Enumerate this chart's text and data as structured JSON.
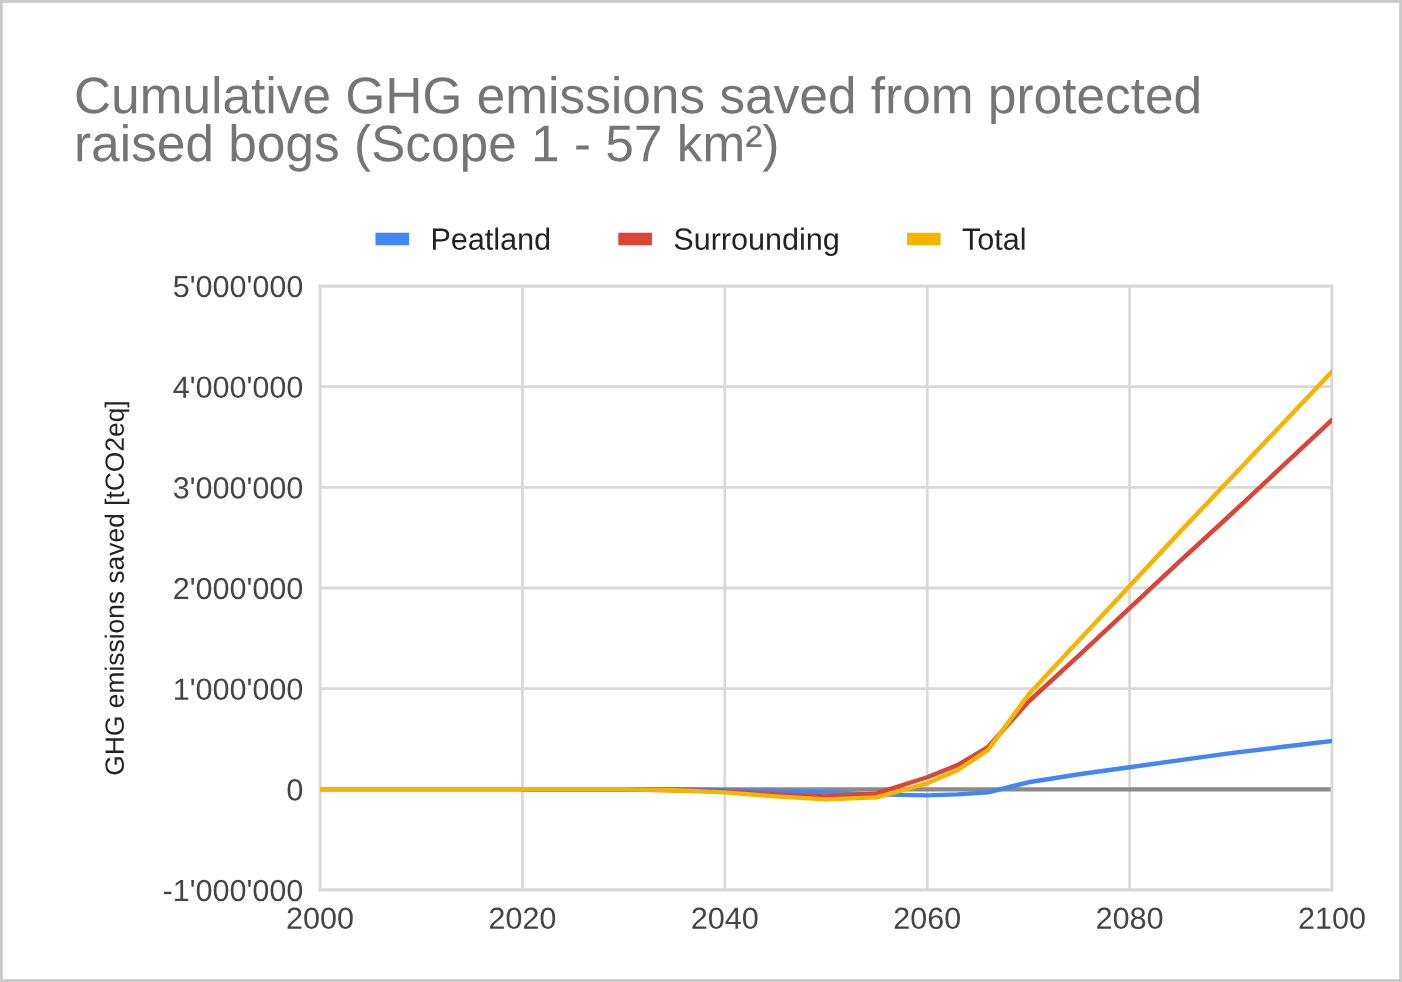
{
  "chart_data": {
    "type": "line",
    "title": "Cumulative GHG emissions saved from protected\nraised bogs (Scope 1 - 57 km²)",
    "ylabel": "GHG emissions saved [tCO2eq]",
    "x": [
      2000,
      2010,
      2020,
      2030,
      2035,
      2040,
      2045,
      2050,
      2055,
      2060,
      2063,
      2066,
      2070,
      2075,
      2080,
      2085,
      2090,
      2095,
      2100
    ],
    "series": [
      {
        "name": "Peatland",
        "color": "#4285f4",
        "values": [
          null,
          null,
          0,
          0,
          0,
          -10000,
          -20000,
          -30000,
          -50000,
          -60000,
          -50000,
          -30000,
          70000,
          150000,
          220000,
          290000,
          360000,
          420000,
          480000
        ]
      },
      {
        "name": "Surrounding",
        "color": "#db4437",
        "values": [
          null,
          null,
          0,
          0,
          -10000,
          -20000,
          -50000,
          -70000,
          -40000,
          120000,
          240000,
          420000,
          870000,
          1330000,
          1800000,
          2270000,
          2730000,
          3200000,
          3670000
        ]
      },
      {
        "name": "Total",
        "color": "#f4b400",
        "values": [
          0,
          0,
          0,
          0,
          -10000,
          -30000,
          -70000,
          -100000,
          -80000,
          60000,
          190000,
          390000,
          940000,
          1480000,
          2020000,
          2560000,
          3090000,
          3620000,
          4150000
        ]
      }
    ],
    "xlim": [
      2000,
      2100
    ],
    "xticks": [
      2000,
      2020,
      2040,
      2060,
      2080,
      2100
    ],
    "ylim": [
      -1000000,
      5000000
    ],
    "yticks": [
      {
        "value": -1000000,
        "label": "-1'000'000"
      },
      0,
      {
        "value": 1000000,
        "label": "1'000'000"
      },
      {
        "value": 2000000,
        "label": "2'000'000"
      },
      {
        "value": 3000000,
        "label": "3'000'000"
      },
      {
        "value": 4000000,
        "label": "4'000'000"
      },
      {
        "value": 5000000,
        "label": "5'000'000"
      }
    ],
    "ref_lines": [
      {
        "axis": "y",
        "value": 0,
        "color": "#8a8a8a"
      }
    ],
    "grid": true,
    "legend": "top"
  }
}
